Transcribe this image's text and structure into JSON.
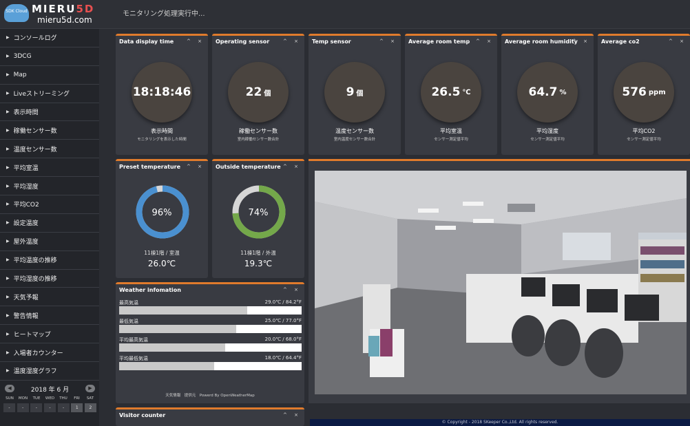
{
  "header": {
    "logo_badge": "SDK Cloud",
    "brand_main": "MIERU",
    "brand_accent": "5D",
    "domain": "mieru5d.com",
    "status": "モニタリング処理実行中..."
  },
  "sidebar": {
    "items": [
      {
        "label": "コンソールログ"
      },
      {
        "label": "3DCG"
      },
      {
        "label": "Map"
      },
      {
        "label": "Liveストリーミング"
      },
      {
        "label": "表示時間"
      },
      {
        "label": "稼働センサー数"
      },
      {
        "label": "温度センサー数"
      },
      {
        "label": "平均室温"
      },
      {
        "label": "平均湿度"
      },
      {
        "label": "平均CO2"
      },
      {
        "label": "設定温度"
      },
      {
        "label": "屋外温度"
      },
      {
        "label": "平均温度の推移"
      },
      {
        "label": "平均湿度の推移"
      },
      {
        "label": "天気予報"
      },
      {
        "label": "警告情報"
      },
      {
        "label": "ヒートマップ"
      },
      {
        "label": "入場者カウンター"
      },
      {
        "label": "温度湿度グラフ"
      }
    ],
    "calendar": {
      "title": "2018 年 6 月",
      "prev": "◀",
      "next": "▶",
      "days": [
        "SUN",
        "MON",
        "TUE",
        "WED",
        "THU",
        "FRI",
        "SAT"
      ],
      "cells": [
        "-",
        "-",
        "-",
        "-",
        "-",
        "1",
        "2"
      ]
    }
  },
  "controls": "^ ×",
  "widgets": {
    "time": {
      "title": "Data display time",
      "value": "18:18:46",
      "unit": "",
      "label": "表示時間",
      "sub": "モニタリングを表示した時間"
    },
    "operating": {
      "title": "Operating sensor",
      "value": "22",
      "unit": "個",
      "label": "稼働センサー数",
      "sub": "室内稼働センサー数合計"
    },
    "temp_sensor": {
      "title": "Temp sensor",
      "value": "9",
      "unit": "個",
      "label": "温度センサー数",
      "sub": "室内温度センサー数合計"
    },
    "avg_temp": {
      "title": "Average room temp",
      "value": "26.5",
      "unit": "℃",
      "label": "平均室温",
      "sub": "センサー測定値平均"
    },
    "avg_humidity": {
      "title": "Average room humidity",
      "value": "64.7",
      "unit": "%",
      "label": "平均湿度",
      "sub": "センサー測定値平均"
    },
    "avg_co2": {
      "title": "Average co2",
      "value": "576",
      "unit": "ppm",
      "label": "平均CO2",
      "sub": "センサー測定値平均"
    },
    "preset": {
      "title": "Preset temperature",
      "percent": 96,
      "percent_text": "96%",
      "label": "11棟1階 / 室温",
      "value": "26.0℃",
      "color": "#4a90d0"
    },
    "outside": {
      "title": "Outside temperature",
      "percent": 74,
      "percent_text": "74%",
      "label": "11棟1階 / 外温",
      "value": "19.3℃",
      "color": "#74a84a"
    },
    "weather": {
      "title": "Weather infomation",
      "rows": [
        {
          "name": "最高気温",
          "value": "29.0℃ / 84.2°F",
          "fill": 0.7
        },
        {
          "name": "最低気温",
          "value": "25.0℃ / 77.0°F",
          "fill": 0.64
        },
        {
          "name": "平均最高気温",
          "value": "20.0℃ / 68.0°F",
          "fill": 0.58
        },
        {
          "name": "平均最低気温",
          "value": "18.0℃ / 64.4°F",
          "fill": 0.52
        }
      ],
      "footer": "天気情報　提供元　Powerd By OpenWeatherMap"
    },
    "visitor": {
      "title": "Visitor counter"
    }
  },
  "footer": "© Copyright - 2018 SKeeper Co.,Ltd. All rights reserved."
}
